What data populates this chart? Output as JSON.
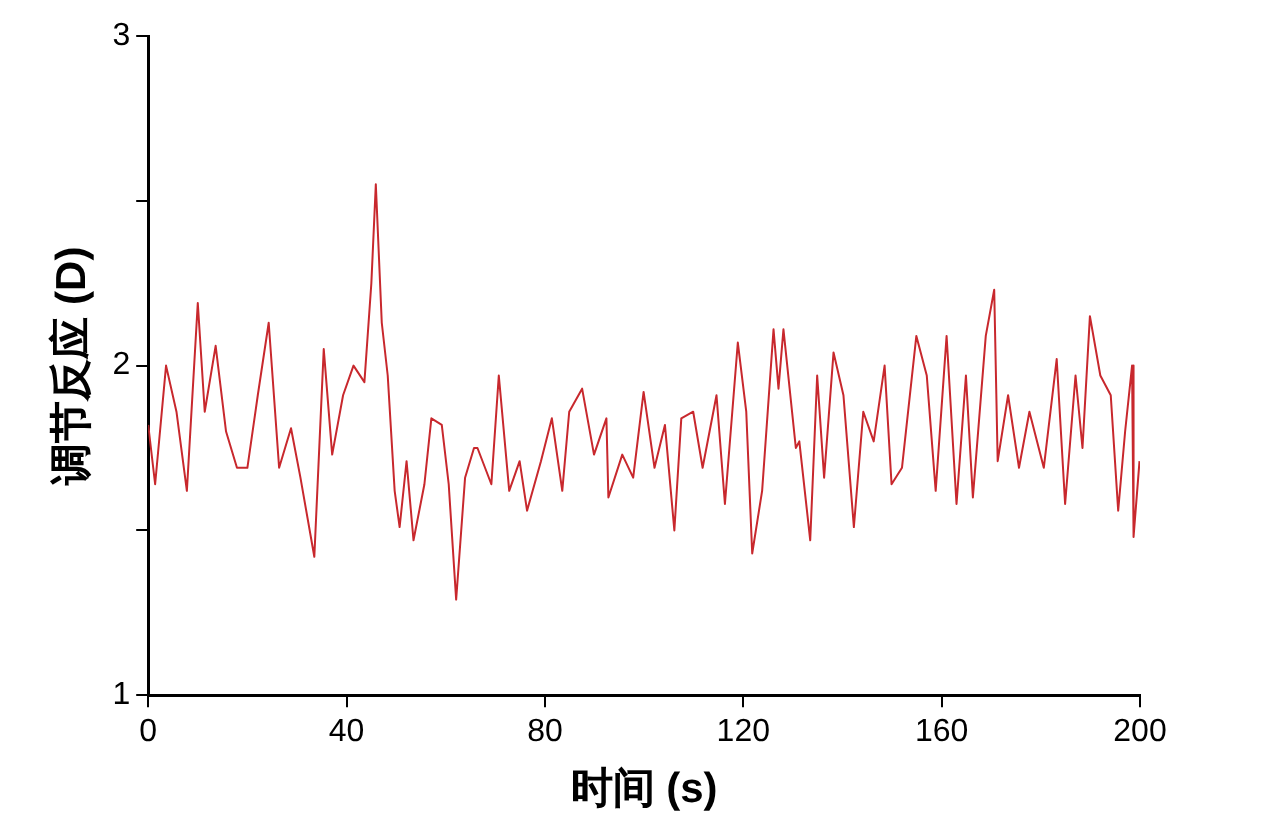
{
  "chart_data": {
    "type": "line",
    "xlabel": "时间 (s)",
    "ylabel": "调节反应 (D)",
    "xlim": [
      0,
      200
    ],
    "xticks": [
      0,
      40,
      80,
      120,
      160,
      200
    ],
    "ylim": [
      1,
      3
    ],
    "yticks": [
      1,
      {
        "value": 1.5,
        "label": null
      },
      2,
      {
        "value": 2.5,
        "label": null
      },
      3
    ],
    "grid": false,
    "legend": false,
    "marker": "none",
    "line_style": "solid",
    "series": [
      {
        "color": "#c8282d",
        "x": [
          0,
          1.4,
          3.6,
          5.7,
          7.8,
          10,
          11.4,
          13.6,
          15.7,
          17.9,
          20,
          22.1,
          24.3,
          26.4,
          28.8,
          30.7,
          33.5,
          35.4,
          37.1,
          39.3,
          41.4,
          43.6,
          45,
          45.9,
          47.1,
          48.3,
          49.7,
          50.7,
          52.1,
          53.5,
          55.7,
          57.1,
          59.2,
          60.6,
          62.1,
          63.9,
          65.7,
          66.4,
          69.2,
          70.7,
          72.8,
          74.9,
          76.4,
          79.2,
          81.4,
          83.5,
          84.9,
          87.5,
          89.9,
          92.4,
          92.8,
          95.6,
          97.8,
          99.9,
          102.1,
          104.2,
          106.1,
          107.5,
          109.9,
          111.8,
          114.6,
          116.3,
          118.9,
          120.6,
          121.8,
          123.8,
          126.1,
          127.1,
          128.1,
          130.6,
          131.3,
          133.5,
          134.9,
          136.3,
          138.2,
          140.2,
          142.3,
          144.2,
          146.3,
          148.5,
          149.9,
          152,
          154.9,
          157,
          158.8,
          161,
          163,
          164.9,
          166.3,
          168.9,
          170.6,
          171.3,
          173.4,
          175.6,
          177.7,
          180.6,
          183.2,
          184.9,
          187,
          188.4,
          189.9,
          192,
          194.1,
          195.6,
          197,
          198.4,
          198.7,
          199.9
        ],
        "values": [
          1.82,
          1.64,
          2.0,
          1.86,
          1.62,
          2.19,
          1.86,
          2.06,
          1.8,
          1.69,
          1.69,
          1.91,
          2.13,
          1.69,
          1.81,
          1.66,
          1.42,
          2.05,
          1.73,
          1.91,
          2.0,
          1.95,
          2.25,
          2.55,
          2.13,
          1.97,
          1.62,
          1.51,
          1.71,
          1.47,
          1.64,
          1.84,
          1.82,
          1.64,
          1.29,
          1.66,
          1.75,
          1.75,
          1.64,
          1.97,
          1.62,
          1.71,
          1.56,
          1.71,
          1.84,
          1.62,
          1.86,
          1.93,
          1.73,
          1.84,
          1.6,
          1.73,
          1.66,
          1.92,
          1.69,
          1.82,
          1.5,
          1.84,
          1.86,
          1.69,
          1.91,
          1.58,
          2.07,
          1.86,
          1.43,
          1.62,
          2.11,
          1.93,
          2.11,
          1.75,
          1.77,
          1.47,
          1.97,
          1.66,
          2.04,
          1.91,
          1.51,
          1.86,
          1.77,
          2.0,
          1.64,
          1.69,
          2.09,
          1.97,
          1.62,
          2.09,
          1.58,
          1.97,
          1.6,
          2.09,
          2.23,
          1.71,
          1.91,
          1.69,
          1.86,
          1.69,
          2.02,
          1.58,
          1.97,
          1.75,
          2.15,
          1.97,
          1.91,
          1.56,
          1.8,
          2.0,
          1.48,
          1.71
        ]
      }
    ]
  }
}
